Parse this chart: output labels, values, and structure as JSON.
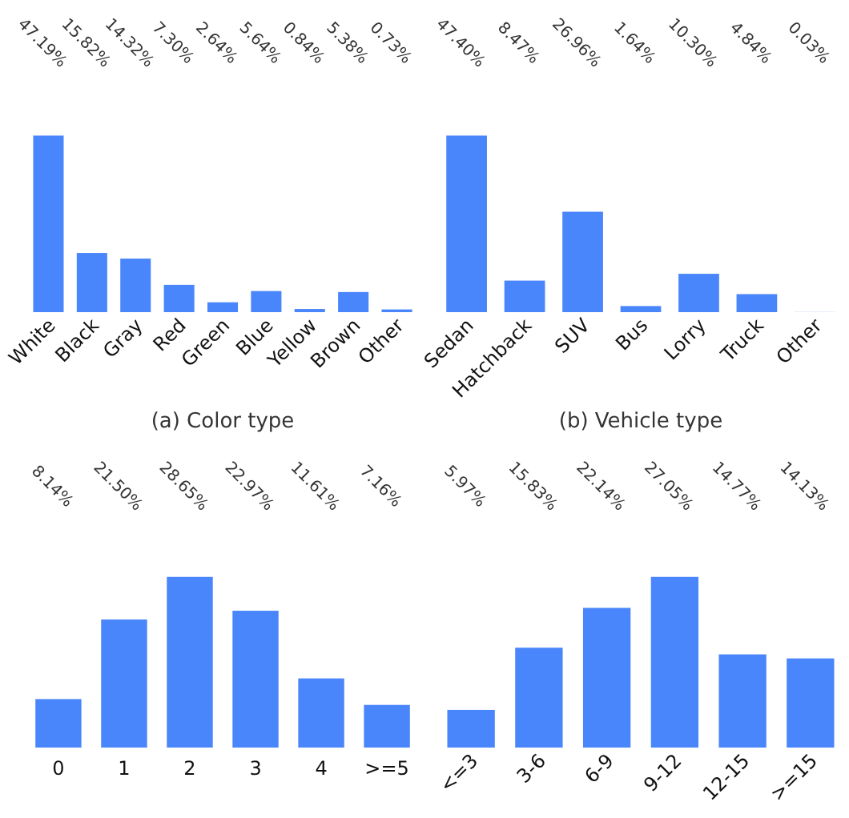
{
  "chart_data": [
    {
      "type": "bar",
      "title": "(a) Color type",
      "categories": [
        "White",
        "Black",
        "Gray",
        "Red",
        "Green",
        "Blue",
        "Yellow",
        "Brown",
        "Other"
      ],
      "values": [
        47.19,
        15.82,
        14.32,
        7.3,
        2.64,
        5.64,
        0.84,
        5.38,
        0.73
      ],
      "value_labels": [
        "47.19%",
        "15.82%",
        "14.32%",
        "7.30%",
        "2.64%",
        "5.64%",
        "0.84%",
        "5.38%",
        "0.73%"
      ],
      "color": "#4a86fb"
    },
    {
      "type": "bar",
      "title": "(b) Vehicle type",
      "categories": [
        "Sedan",
        "Hatchback",
        "SUV",
        "Bus",
        "Lorry",
        "Truck",
        "Other"
      ],
      "values": [
        47.4,
        8.47,
        26.96,
        1.64,
        10.3,
        4.84,
        0.03
      ],
      "value_labels": [
        "47.40%",
        "8.47%",
        "26.96%",
        "1.64%",
        "10.30%",
        "4.84%",
        "0.03%"
      ],
      "color": "#4a86fb"
    },
    {
      "type": "bar",
      "categories": [
        "0",
        "1",
        "2",
        "3",
        "4",
        ">=5"
      ],
      "values": [
        8.14,
        21.5,
        28.65,
        22.97,
        11.61,
        7.16
      ],
      "value_labels": [
        "8.14%",
        "21.50%",
        "28.65%",
        "22.97%",
        "11.61%",
        "7.16%"
      ],
      "color": "#4a86fb"
    },
    {
      "type": "bar",
      "categories": [
        "<=3",
        "3-6",
        "6-9",
        "9-12",
        "12-15",
        ">=15"
      ],
      "values": [
        5.97,
        15.83,
        22.14,
        27.05,
        14.77,
        14.13
      ],
      "value_labels": [
        "5.97%",
        "15.83%",
        "22.14%",
        "27.05%",
        "14.77%",
        "14.13%"
      ],
      "color": "#4a86fb"
    }
  ]
}
